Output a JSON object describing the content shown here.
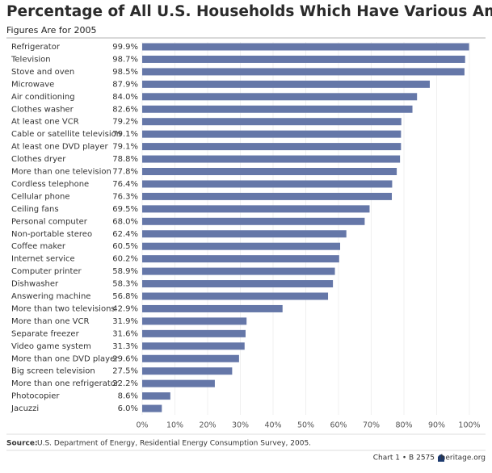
{
  "chart_data": {
    "type": "hbar",
    "title": "Percentage of All U.S. Households Which Have Various Amenities",
    "subtitle": "Figures Are for 2005",
    "categories": [
      "Refrigerator",
      "Television",
      "Stove and oven",
      "Microwave",
      "Air conditioning",
      "Clothes washer",
      "At least one VCR",
      "Cable or satellite television",
      "At least one DVD player",
      "Clothes dryer",
      "More than one television",
      "Cordless telephone",
      "Cellular phone",
      "Ceiling fans",
      "Personal computer",
      "Non-portable stereo",
      "Coffee maker",
      "Internet service",
      "Computer printer",
      "Dishwasher",
      "Answering machine",
      "More than two televisions",
      "More than one VCR",
      "Separate freezer",
      "Video game system",
      "More than one DVD player",
      "Big screen television",
      "More than one refrigerator",
      "Photocopier",
      "Jacuzzi"
    ],
    "values": [
      99.9,
      98.7,
      98.5,
      87.9,
      84.0,
      82.6,
      79.2,
      79.1,
      79.1,
      78.8,
      77.8,
      76.4,
      76.3,
      69.5,
      68.0,
      62.4,
      60.5,
      60.2,
      58.9,
      58.3,
      56.8,
      42.9,
      31.9,
      31.6,
      31.3,
      29.6,
      27.5,
      22.2,
      8.6,
      6.0
    ],
    "value_labels": [
      "99.9%",
      "98.7%",
      "98.5%",
      "87.9%",
      "84.0%",
      "82.6%",
      "79.2%",
      "79.1%",
      "79.1%",
      "78.8%",
      "77.8%",
      "76.4%",
      "76.3%",
      "69.5%",
      "68.0%",
      "62.4%",
      "60.5%",
      "60.2%",
      "58.9%",
      "58.3%",
      "56.8%",
      "42.9%",
      "31.9%",
      "31.6%",
      "31.3%",
      "29.6%",
      "27.5%",
      "22.2%",
      "8.6%",
      "6.0%"
    ],
    "color": "#6577a8",
    "xlim": [
      0,
      100
    ],
    "xticks": [
      {
        "value": 0,
        "label": "0%"
      },
      {
        "value": 10,
        "label": "10%"
      },
      {
        "value": 20,
        "label": "20%"
      },
      {
        "value": 30,
        "label": "30%"
      },
      {
        "value": 40,
        "label": "40%"
      },
      {
        "value": 50,
        "label": "50%"
      },
      {
        "value": 60,
        "label": "60%"
      },
      {
        "value": 70,
        "label": "70%"
      },
      {
        "value": 80,
        "label": "80%"
      },
      {
        "value": 90,
        "label": "90%"
      },
      {
        "value": 100,
        "label": "100%"
      }
    ],
    "grid": true,
    "source_label": "Source:",
    "source": "U.S. Department of Energy, Residential Energy Consumption Survey, 2005.",
    "chart_id": "Chart 1 • B 2575",
    "site": "heritage.org"
  }
}
